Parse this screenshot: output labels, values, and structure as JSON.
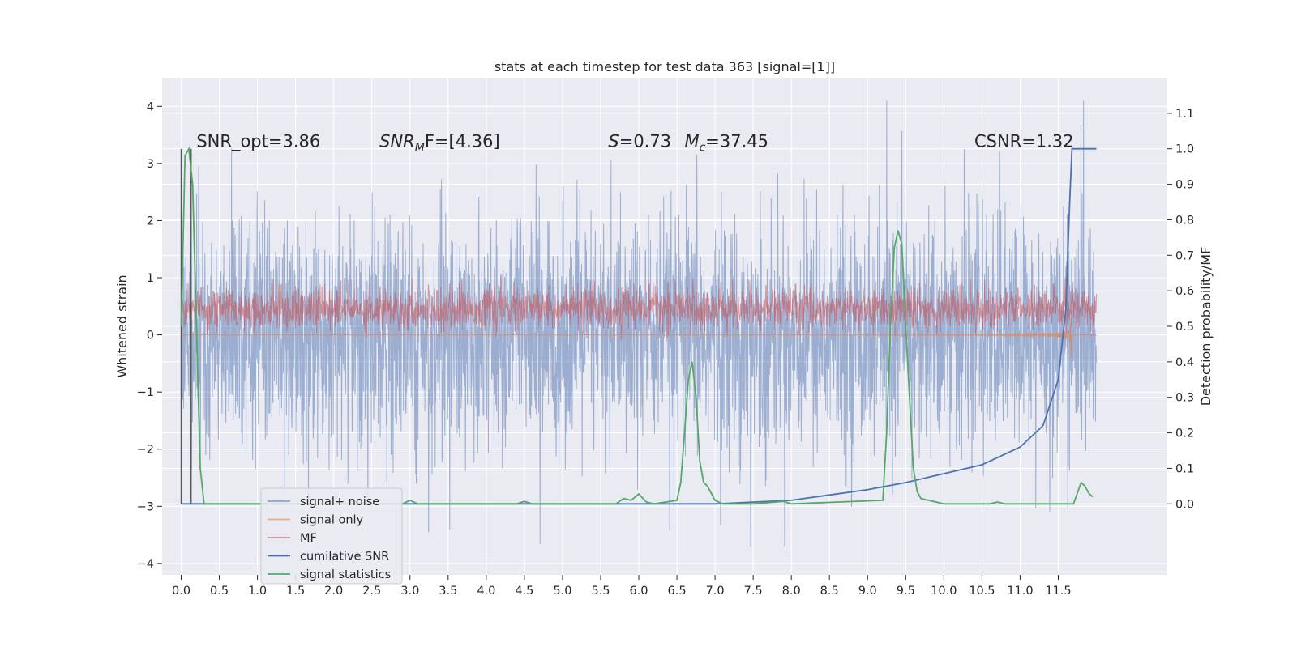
{
  "chart_data": {
    "type": "line",
    "title": "stats at each timestep for test data 363 [signal=[1]]",
    "ylabel_left": "Whitened strain",
    "ylabel_right": "Detection probability/MF",
    "xlim": [
      -0.25,
      12.93
    ],
    "ylim_left": [
      -4.2,
      4.5
    ],
    "ylim_right": [
      -0.2,
      1.2
    ],
    "x_ticks": [
      0.0,
      0.5,
      1.0,
      1.5,
      2.0,
      2.5,
      3.0,
      3.5,
      4.0,
      4.5,
      5.0,
      5.5,
      6.0,
      6.5,
      7.0,
      7.5,
      8.0,
      8.5,
      9.0,
      9.5,
      10.0,
      10.5,
      11.0,
      11.5
    ],
    "x_tick_labels": [
      "0.0",
      "0.5",
      "1.0",
      "1.5",
      "2.0",
      "2.5",
      "3.0",
      "3.5",
      "4.0",
      "4.5",
      "5.0",
      "5.5",
      "6.0",
      "6.5",
      "7.0",
      "7.5",
      "8.0",
      "8.5",
      "9.0",
      "9.5",
      "10.0",
      "10.5",
      "11.0",
      "11.5"
    ],
    "y_left_ticks": [
      -4,
      -3,
      -2,
      -1,
      0,
      1,
      2,
      3,
      4
    ],
    "y_left_tick_labels": [
      "−4",
      "−3",
      "−2",
      "−1",
      "0",
      "1",
      "2",
      "3",
      "4"
    ],
    "y_right_ticks": [
      0.0,
      0.1,
      0.2,
      0.3,
      0.4,
      0.5,
      0.6,
      0.7,
      0.8,
      0.9,
      1.0,
      1.1
    ],
    "y_right_tick_labels": [
      "0.0",
      "0.1",
      "0.2",
      "0.3",
      "0.4",
      "0.5",
      "0.6",
      "0.7",
      "0.8",
      "0.9",
      "1.0",
      "1.1"
    ],
    "grid": true,
    "legend_location": "lower-left",
    "series": [
      {
        "name": "signal+ noise",
        "color": "#4c72b0",
        "axis": "left",
        "x_range": [
          0,
          12.0
        ],
        "amplitude_range": [
          -3.7,
          4.1
        ]
      },
      {
        "name": "signal only",
        "color": "#dd8452",
        "axis": "left",
        "x_range": [
          0,
          12.0
        ],
        "note_value_range": [
          -0.8,
          0.4
        ]
      },
      {
        "name": "MF",
        "color": "#c44e52",
        "axis": "right",
        "x_range": [
          0,
          12.0
        ],
        "y_range": [
          0.47,
          0.63
        ]
      },
      {
        "name": "cumilative SNR",
        "color": "#4c72b0",
        "axis": "right",
        "x": [
          0.0,
          7.0,
          8.0,
          8.5,
          9.0,
          9.5,
          10.0,
          10.5,
          11.0,
          11.3,
          11.5,
          11.6,
          11.65,
          11.68,
          12.0
        ],
        "y": [
          0.0,
          0.0,
          0.01,
          0.025,
          0.04,
          0.06,
          0.085,
          0.11,
          0.16,
          0.22,
          0.35,
          0.55,
          0.85,
          1.0,
          1.0
        ]
      },
      {
        "name": "signal statistics",
        "color": "#55a868",
        "axis": "right",
        "x": [
          0.0,
          0.05,
          0.1,
          0.15,
          0.2,
          0.25,
          0.3,
          2.9,
          3.0,
          3.1,
          4.4,
          4.5,
          4.6,
          5.7,
          5.8,
          5.9,
          6.0,
          6.1,
          6.2,
          6.5,
          6.55,
          6.6,
          6.65,
          6.7,
          6.75,
          6.8,
          6.85,
          6.9,
          7.0,
          7.1,
          7.5,
          7.9,
          8.0,
          9.2,
          9.25,
          9.3,
          9.35,
          9.4,
          9.45,
          9.5,
          9.55,
          9.6,
          9.65,
          9.7,
          9.8,
          10.0,
          10.6,
          10.7,
          10.8,
          11.7,
          11.75,
          11.8,
          11.85,
          11.9,
          11.95
        ],
        "y": [
          0.5,
          0.98,
          1.0,
          0.9,
          0.5,
          0.1,
          0.0,
          0.0,
          0.01,
          0.0,
          0.0,
          0.007,
          0.0,
          0.0,
          0.015,
          0.01,
          0.028,
          0.005,
          0.0,
          0.01,
          0.06,
          0.2,
          0.35,
          0.4,
          0.3,
          0.12,
          0.06,
          0.05,
          0.01,
          0.0,
          0.0,
          0.007,
          0.0,
          0.01,
          0.2,
          0.5,
          0.72,
          0.77,
          0.73,
          0.5,
          0.3,
          0.1,
          0.035,
          0.015,
          0.01,
          0.0,
          0.0,
          0.005,
          0.0,
          0.0,
          0.03,
          0.06,
          0.05,
          0.03,
          0.02
        ]
      }
    ],
    "annotations": [
      {
        "text": "SNR_opt=3.86",
        "x": 0.2,
        "y_right": 1.0
      },
      {
        "text_sym": "SNR",
        "text_sub": "M",
        "text_rest": "F=[4.36]",
        "x": 2.6,
        "y_right": 1.0
      },
      {
        "text_sym": "S",
        "text_rest": "=0.73",
        "x": 5.6,
        "y_right": 1.0
      },
      {
        "text_sym": "M",
        "text_sub": "c",
        "text_rest": "=37.45",
        "x": 6.6,
        "y_right": 1.0
      },
      {
        "text": "CSNR=1.32",
        "x": 10.4,
        "y_right": 1.0
      }
    ]
  }
}
